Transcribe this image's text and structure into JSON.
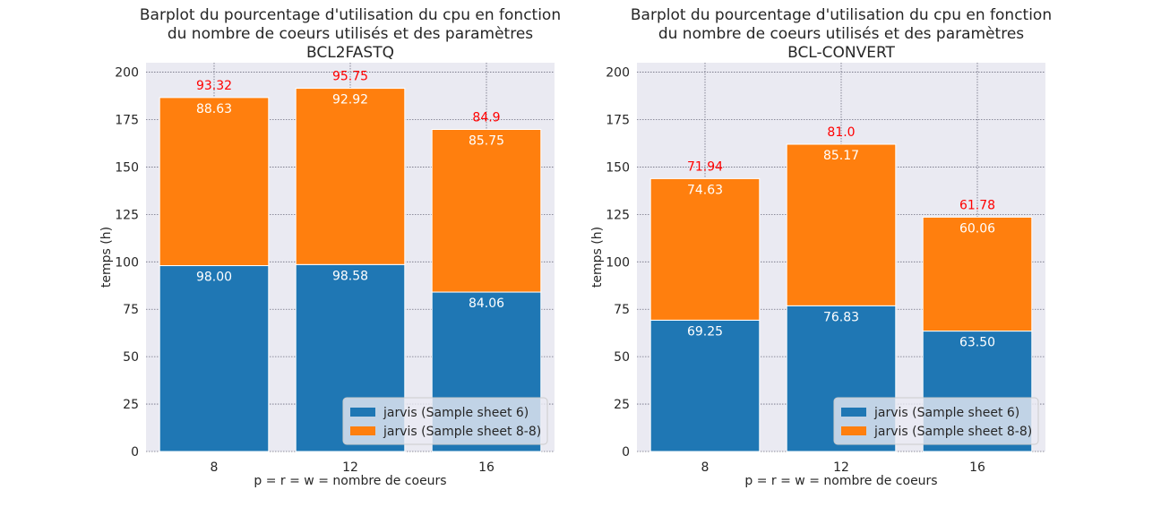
{
  "chart_data": [
    {
      "type": "bar",
      "stacked": true,
      "title": [
        "Barplot du pourcentage d'utilisation du cpu en fonction",
        "du nombre de coeurs utilisés et des paramètres",
        "BCL2FASTQ"
      ],
      "xlabel": "p = r = w = nombre de coeurs",
      "ylabel": "temps (h)",
      "ylim": [
        0,
        205
      ],
      "yticks": [
        0,
        25,
        50,
        75,
        100,
        125,
        150,
        175,
        200
      ],
      "categories": [
        "8",
        "12",
        "16"
      ],
      "series": [
        {
          "name": "jarvis (Sample sheet 6)",
          "values": [
            98.0,
            98.58,
            84.06
          ],
          "labels": [
            "98.00",
            "98.58",
            "84.06"
          ],
          "color": "#1f77b4"
        },
        {
          "name": "jarvis (Sample sheet 8-8)",
          "values": [
            88.63,
            92.92,
            85.75
          ],
          "labels": [
            "88.63",
            "92.92",
            "85.75"
          ],
          "color": "#ff7f0e"
        }
      ],
      "top_labels": [
        "93.32",
        "95.75",
        "84.9"
      ],
      "top_label_color": "#ff0000",
      "grid": true,
      "legend_position": "lower-right"
    },
    {
      "type": "bar",
      "stacked": true,
      "title": [
        "Barplot du pourcentage d'utilisation du cpu en fonction",
        "du nombre de coeurs utilisés et des paramètres",
        "BCL-CONVERT"
      ],
      "xlabel": "p = r = w = nombre de coeurs",
      "ylabel": "temps (h)",
      "ylim": [
        0,
        205
      ],
      "yticks": [
        0,
        25,
        50,
        75,
        100,
        125,
        150,
        175,
        200
      ],
      "categories": [
        "8",
        "12",
        "16"
      ],
      "series": [
        {
          "name": "jarvis (Sample sheet 6)",
          "values": [
            69.25,
            76.83,
            63.5
          ],
          "labels": [
            "69.25",
            "76.83",
            "63.50"
          ],
          "color": "#1f77b4"
        },
        {
          "name": "jarvis (Sample sheet 8-8)",
          "values": [
            74.63,
            85.17,
            60.06
          ],
          "labels": [
            "74.63",
            "85.17",
            "60.06"
          ],
          "color": "#ff7f0e"
        }
      ],
      "top_labels": [
        "71.94",
        "81.0",
        "61.78"
      ],
      "top_label_color": "#ff0000",
      "grid": true,
      "legend_position": "lower-right"
    }
  ],
  "style": {
    "plot_background": "#eaeaf2",
    "grid_color": "#6e6e80"
  }
}
